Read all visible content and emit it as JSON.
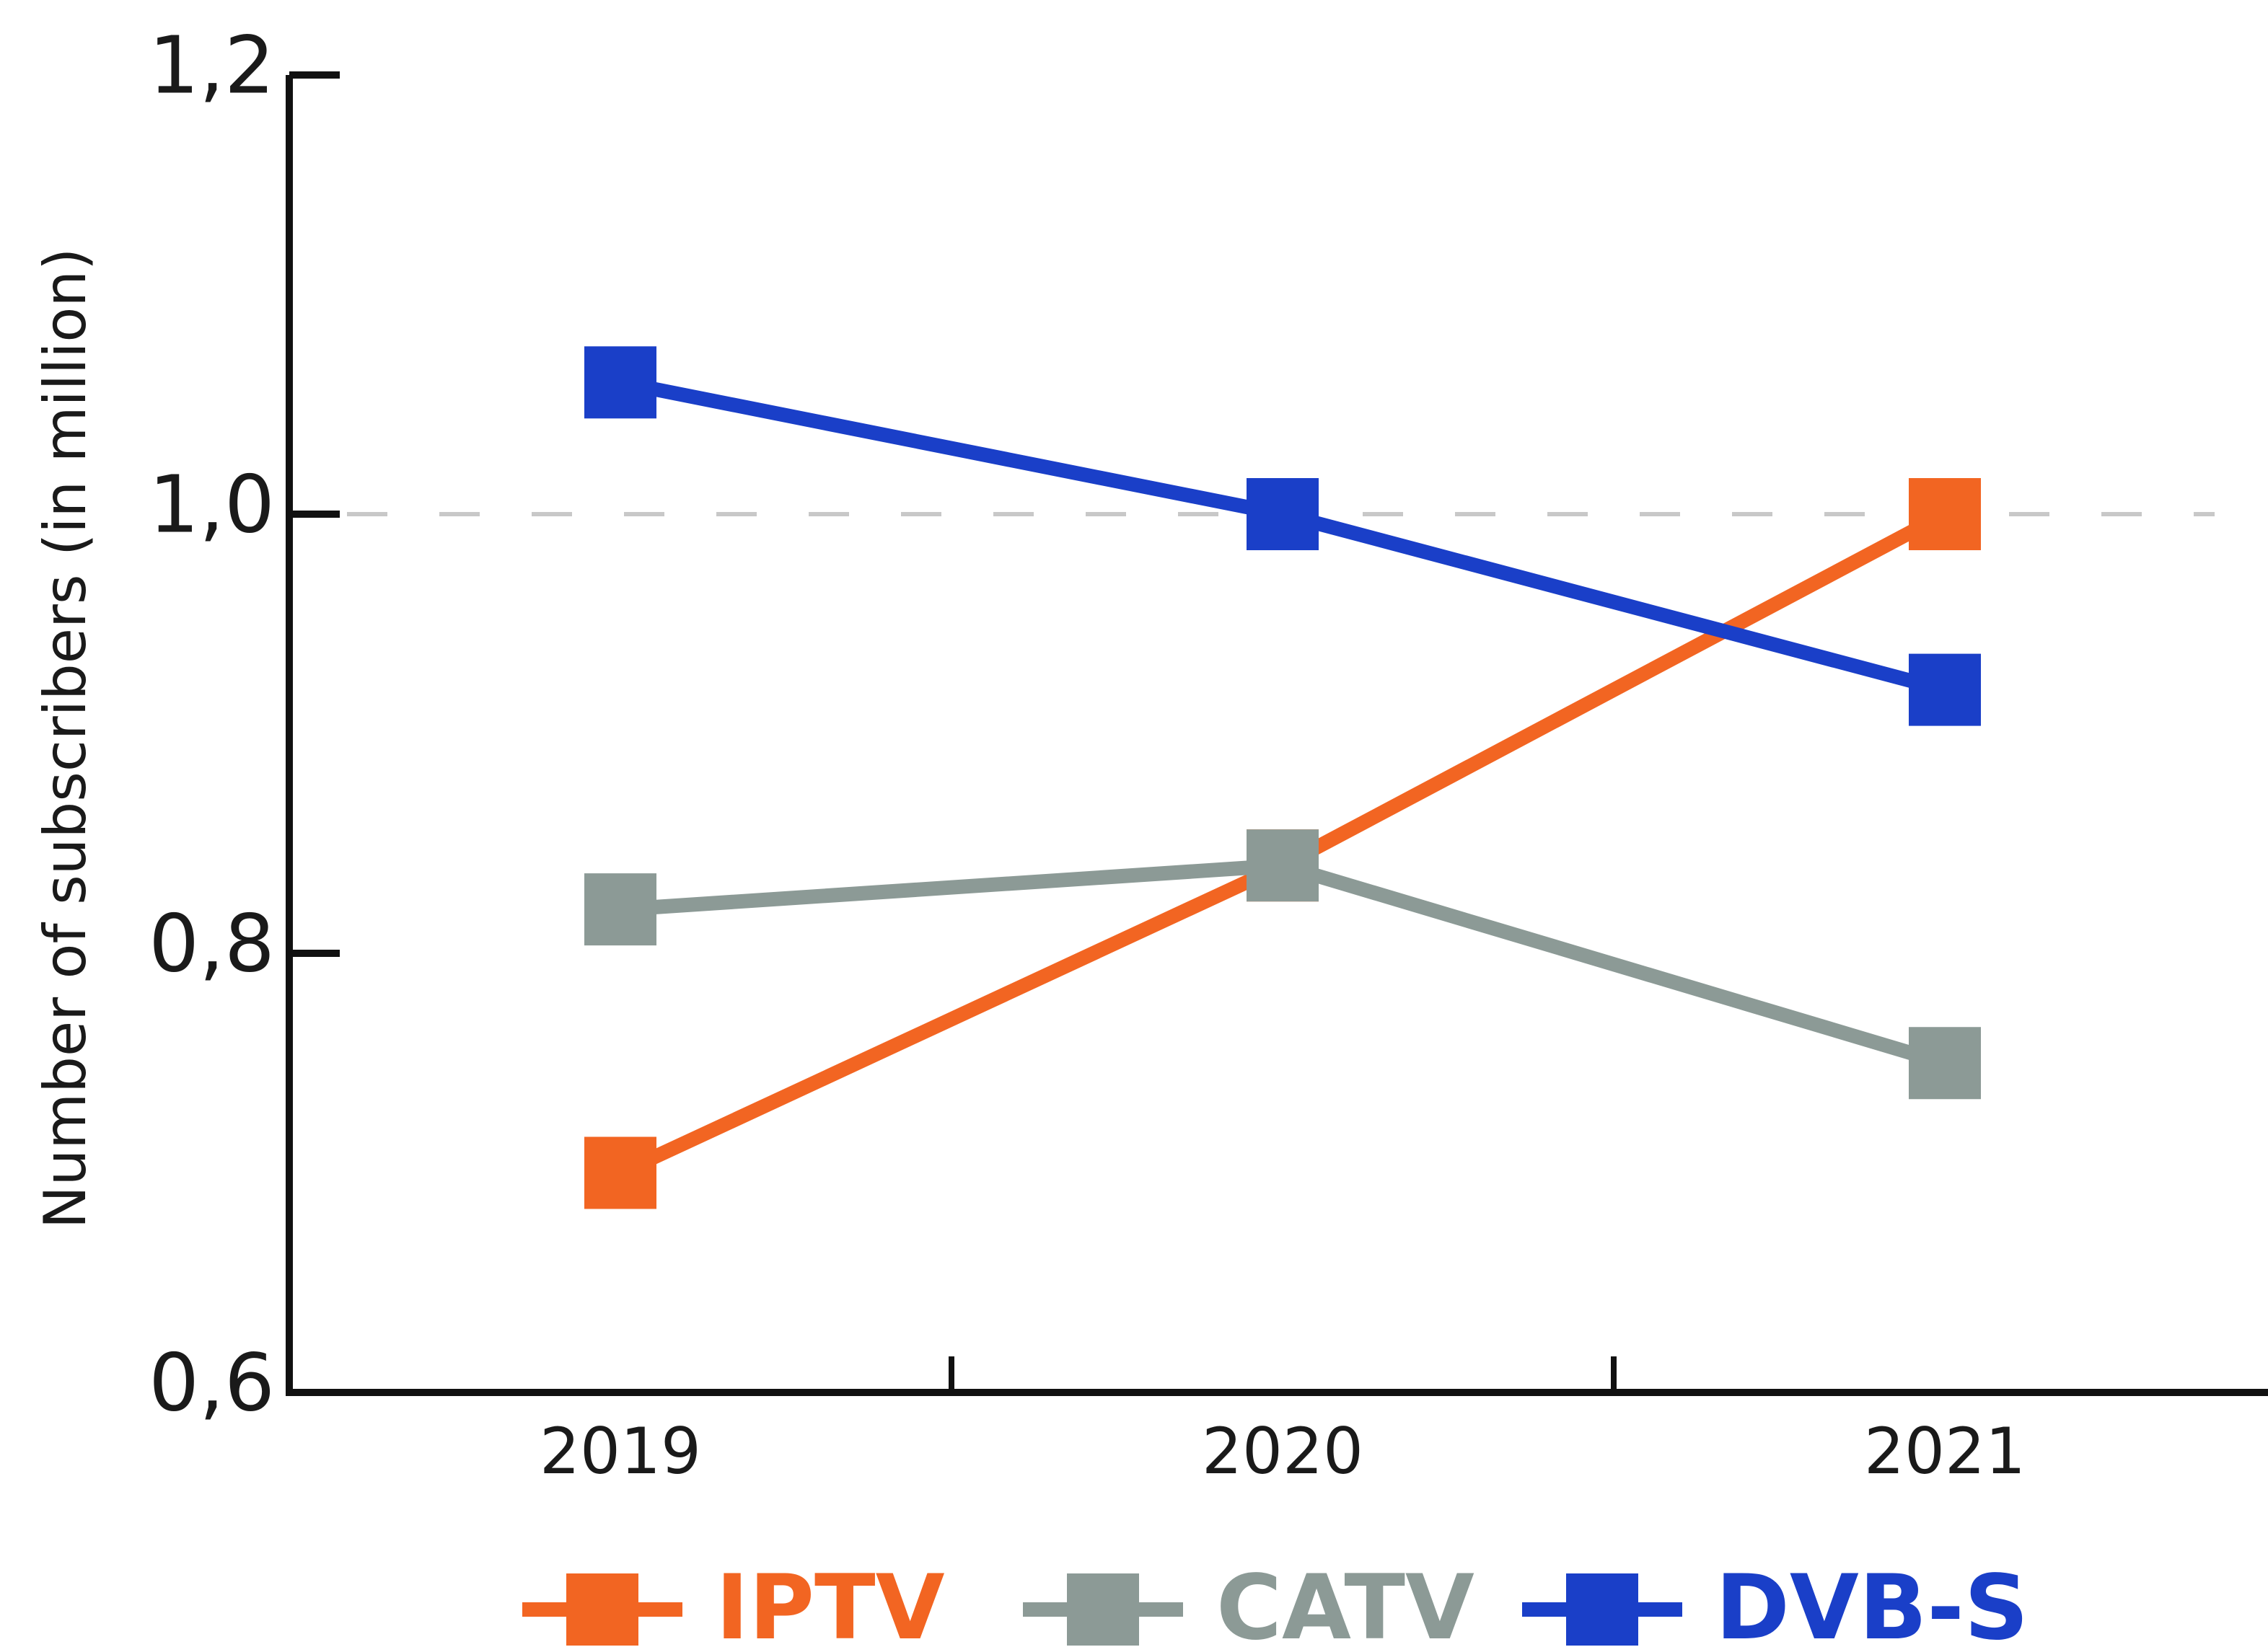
{
  "chart_data": {
    "type": "line",
    "y_label": "Number of subscribers (in million)",
    "categories": [
      "2019",
      "2020",
      "2021"
    ],
    "series": [
      {
        "name": "IPTV",
        "color": "#f26522",
        "values": [
          0.7,
          0.84,
          1.0
        ]
      },
      {
        "name": "CATV",
        "color": "#8c9a96",
        "values": [
          0.82,
          0.84,
          0.75
        ]
      },
      {
        "name": "DVB-S",
        "color": "#1a3fc8",
        "values": [
          1.06,
          1.0,
          0.92
        ]
      }
    ],
    "ylim": [
      0.6,
      1.2
    ],
    "yticks": [
      {
        "value": 0.6,
        "label": "0,6"
      },
      {
        "value": 0.8,
        "label": "0,8"
      },
      {
        "value": 1.0,
        "label": "1,0"
      },
      {
        "value": 1.2,
        "label": "1,2"
      }
    ],
    "reference_line": 1.0,
    "legend": "bottom"
  }
}
